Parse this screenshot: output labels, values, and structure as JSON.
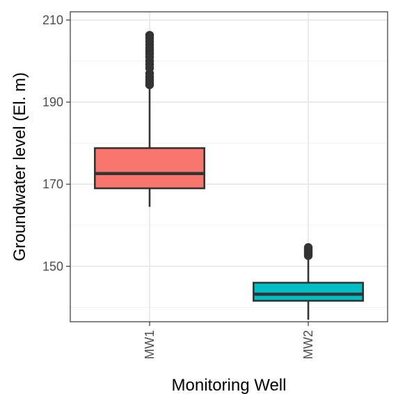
{
  "chart_data": {
    "type": "box",
    "title": "",
    "xlabel": "Monitoring Well",
    "ylabel": "Groundwater level (El. m)",
    "ylim": [
      136.5,
      212
    ],
    "yticks": [
      150,
      170,
      190,
      210
    ],
    "y_minor_gridlines": [
      140,
      160,
      180,
      200
    ],
    "grid": true,
    "legend": "none",
    "categories": [
      "MW1",
      "MW2"
    ],
    "boxes": [
      {
        "category": "MW1",
        "whisker_low": 164.5,
        "q1": 169.0,
        "median": 172.6,
        "q3": 178.8,
        "whisker_high": 193.8,
        "outliers": [
          194.2,
          194.8,
          195.5,
          196.2,
          197.0,
          198.3,
          199.2,
          200.0,
          201.0,
          201.8,
          202.5,
          203.2,
          204.0,
          204.8,
          205.6,
          206.3
        ],
        "fill": "#F8766D"
      },
      {
        "category": "MW2",
        "whisker_low": 137.0,
        "q1": 141.6,
        "median": 143.2,
        "q3": 146.0,
        "whisker_high": 152.3,
        "outliers": [
          152.6,
          153.0,
          153.4,
          153.8,
          154.2,
          154.6
        ],
        "fill": "#00BFC4"
      }
    ]
  }
}
